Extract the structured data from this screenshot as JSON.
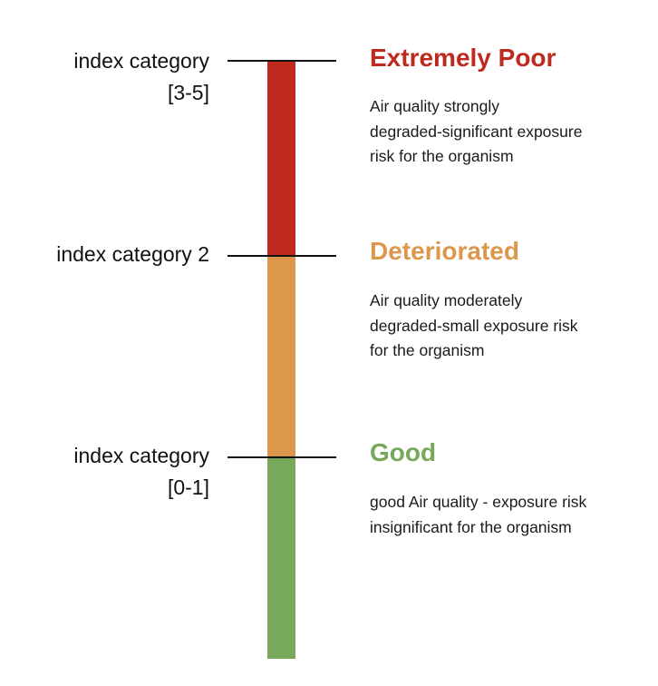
{
  "scale": {
    "levels": [
      {
        "id": "extremely-poor",
        "index_label_lines": [
          "index category",
          "[3-5]"
        ],
        "title": "Extremely Poor",
        "color": "#be2b1e",
        "description_lines": [
          "Air quality strongly",
          "degraded-significant exposure",
          "risk for the organism"
        ]
      },
      {
        "id": "deteriorated",
        "index_label_lines": [
          "index category 2"
        ],
        "title": "Deteriorated",
        "color": "#dd974b",
        "description_lines": [
          "Air quality moderately",
          "degraded-small  exposure risk",
          "for the organism"
        ]
      },
      {
        "id": "good",
        "index_label_lines": [
          "index category",
          "[0-1]"
        ],
        "title": "Good",
        "color": "#78a85a",
        "description_lines": [
          "good Air quality  -  exposure risk",
          "insignificant for the organism"
        ]
      }
    ]
  }
}
